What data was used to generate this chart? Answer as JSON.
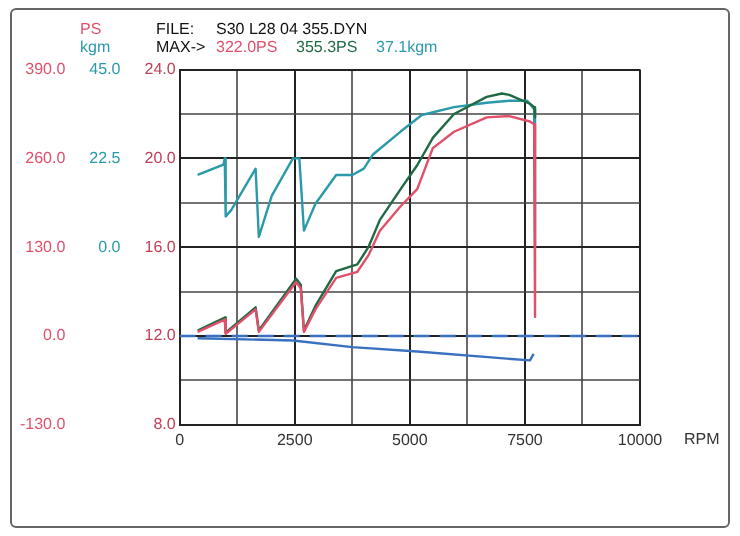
{
  "chart_data": {
    "type": "line",
    "xlabel": "RPM",
    "y2label": "PS",
    "y3label": "kgm",
    "annotations": [
      "FILE:",
      "S30 L28 04 355.DYN",
      "MAX->",
      "322.0PS",
      "355.3PS",
      "37.1kgm"
    ],
    "xlim": [
      0,
      10000
    ],
    "xticks": [
      0,
      {
        "value": 1250,
        "label": null
      },
      2500,
      {
        "value": 3750,
        "label": null
      },
      5000,
      {
        "value": 6250,
        "label": null
      },
      7500,
      {
        "value": 8750,
        "label": null
      },
      10000
    ],
    "ylim": [
      8,
      24
    ],
    "yticks": [
      {
        "value": 24,
        "label": "24.0"
      },
      {
        "value": 22,
        "label": null
      },
      {
        "value": 20,
        "label": "20.0"
      },
      {
        "value": 18,
        "label": null
      },
      {
        "value": 16,
        "label": "16.0"
      },
      {
        "value": 14,
        "label": null
      },
      {
        "value": 12,
        "label": "12.0"
      },
      {
        "value": 10,
        "label": null
      },
      {
        "value": 8,
        "label": "8.0"
      }
    ],
    "y2lim": [
      -130,
      390
    ],
    "y2ticks": [
      {
        "value": 390,
        "label": "390.0"
      },
      {
        "value": 260,
        "label": "260.0"
      },
      {
        "value": 130,
        "label": "130.0"
      },
      {
        "value": 0,
        "label": "0.0"
      },
      {
        "value": -130,
        "label": "-130.0"
      }
    ],
    "y3lim": [
      -45,
      45
    ],
    "y3ticks": [
      {
        "value": 45,
        "label": "45.0"
      },
      {
        "value": 22.5,
        "label": "22.5"
      },
      {
        "value": 0,
        "label": "0.0"
      }
    ],
    "grid": true,
    "marker": "none",
    "line_style": "solid",
    "ref_lines": [
      {
        "axis": "y",
        "value": 12,
        "color": "#3a70c0",
        "line_style": "dashed"
      }
    ],
    "series": [
      {
        "color": "#e0506a",
        "axis": "y2",
        "x": [
          390,
          980,
          1000,
          1160,
          1650,
          1720,
          2530,
          2630,
          2700,
          2950,
          3400,
          3860,
          4100,
          4350,
          4800,
          5160,
          5500,
          5960,
          6670,
          7160,
          7610,
          7700,
          7720
        ],
        "values": [
          6,
          24,
          3,
          12,
          39,
          6,
          79,
          70,
          6,
          39,
          85,
          94,
          118,
          154,
          190,
          215,
          275,
          299,
          320,
          322,
          314,
          310,
          28
        ]
      },
      {
        "color": "#1f6a45",
        "axis": "y2",
        "x": [
          390,
          980,
          1000,
          1160,
          1650,
          1720,
          2530,
          2630,
          2700,
          2950,
          3400,
          3860,
          4100,
          4350,
          4800,
          5160,
          5500,
          5960,
          6670,
          7000,
          7160,
          7610,
          7700,
          7720
        ],
        "values": [
          8,
          27,
          5,
          14,
          42,
          8,
          84,
          75,
          8,
          44,
          95,
          105,
          130,
          170,
          215,
          250,
          290,
          325,
          350,
          355,
          353,
          340,
          335,
          320
        ]
      },
      {
        "color": "#2a9aaa",
        "axis": "y3",
        "x": [
          390,
          950,
          980,
          1000,
          1120,
          1650,
          1720,
          2000,
          2460,
          2600,
          2700,
          2950,
          3400,
          3750,
          4000,
          4200,
          4800,
          5260,
          5960,
          6670,
          7160,
          7550,
          7700,
          7720
        ],
        "values": [
          18.3,
          20.9,
          22.5,
          7.8,
          9.4,
          19.9,
          2.6,
          13,
          22.5,
          22.5,
          4.2,
          11,
          18.3,
          18.3,
          19.9,
          23.5,
          29.3,
          33.5,
          35.5,
          36.6,
          37.1,
          37.1,
          35,
          0
        ]
      },
      {
        "color": "#3a70c0",
        "axis": "y",
        "x": [
          390,
          2460,
          3750,
          5160,
          7610,
          7690
        ],
        "values": [
          11.9,
          11.8,
          11.5,
          11.3,
          10.9,
          11.2
        ]
      }
    ]
  }
}
